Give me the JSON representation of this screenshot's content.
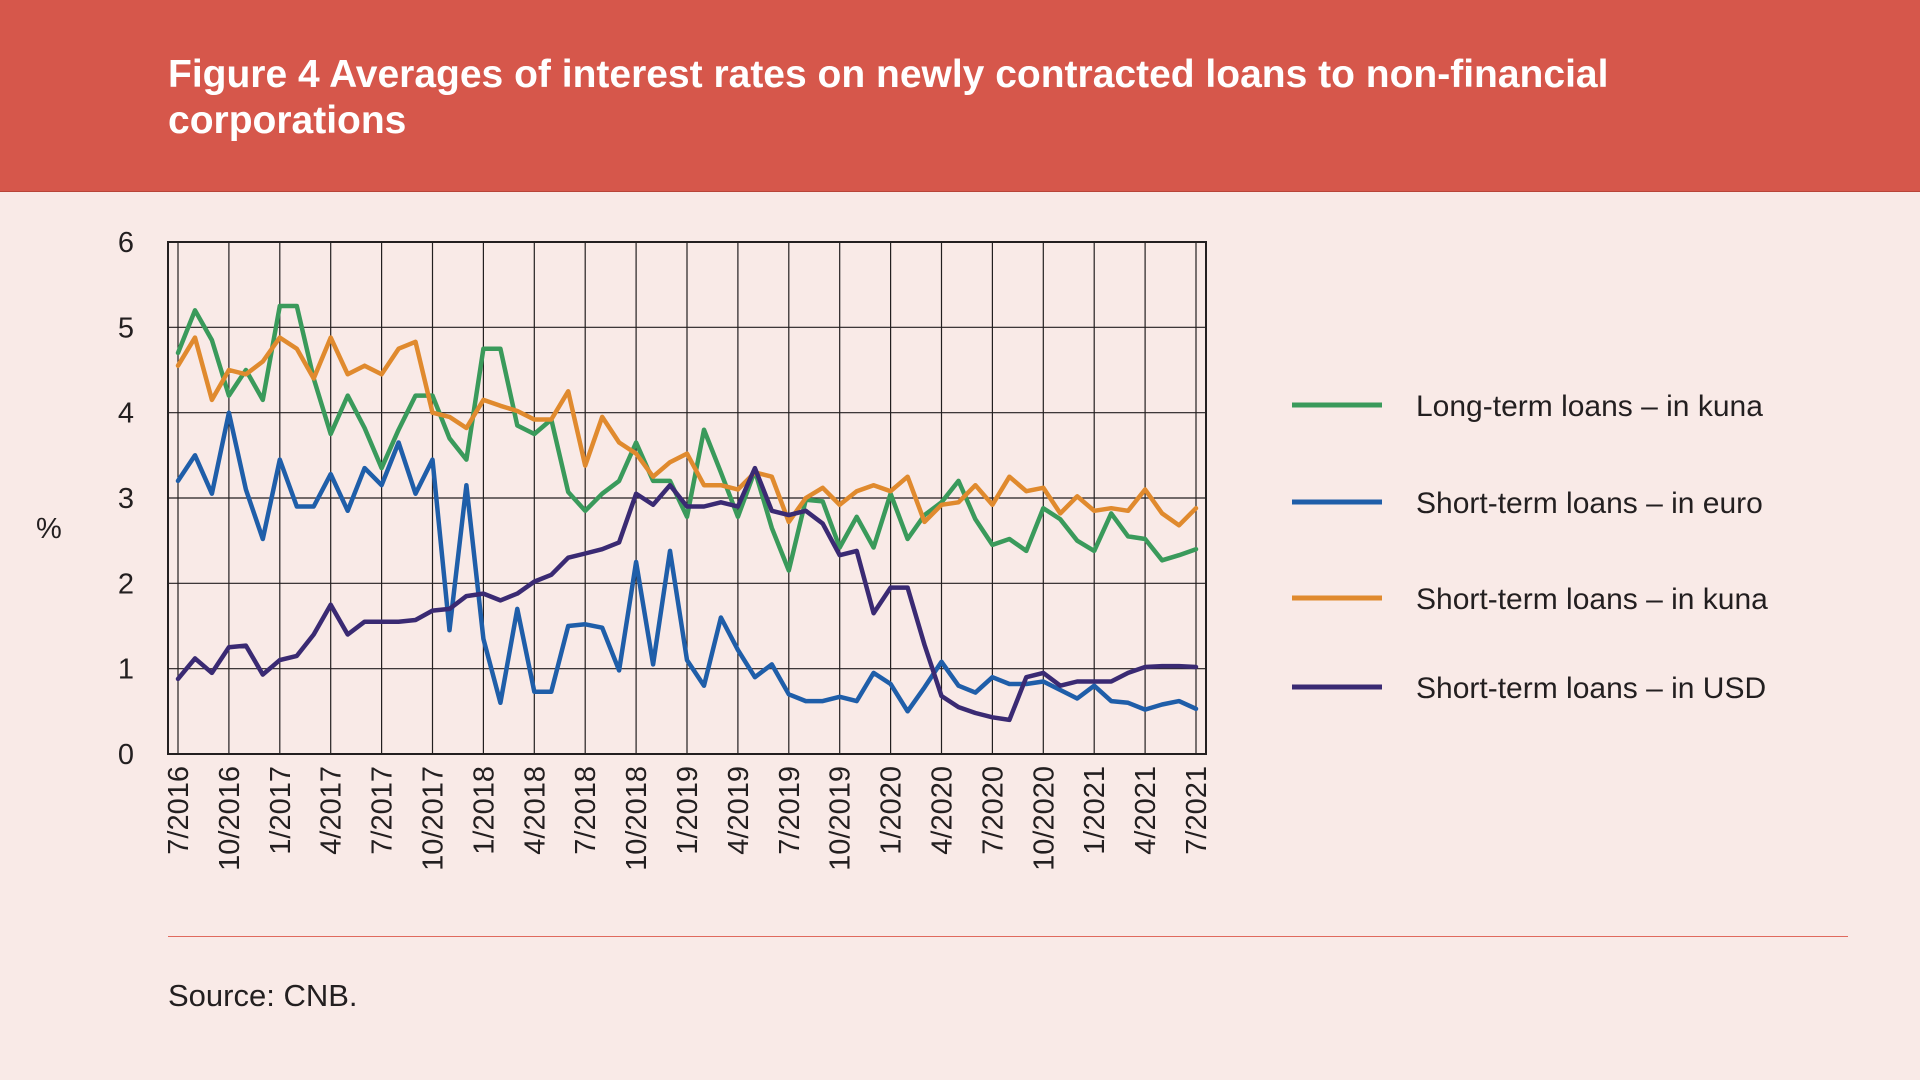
{
  "figure": {
    "title": "Figure 4 Averages of interest rates on newly contracted loans to non-financial corporations",
    "source": "Source: CNB."
  },
  "chart_data": {
    "type": "line",
    "title": "Figure 4 Averages of interest rates on newly contracted loans to non-financial corporations",
    "xlabel": "",
    "ylabel": "%",
    "ylim": [
      0,
      6
    ],
    "yticks": [
      "0",
      "1",
      "2",
      "3",
      "4",
      "5",
      "6"
    ],
    "grid": true,
    "legend_position": "right",
    "x_tick_labels": [
      "7/2016",
      "10/2016",
      "1/2017",
      "4/2017",
      "7/2017",
      "10/2017",
      "1/2018",
      "4/2018",
      "7/2018",
      "10/2018",
      "1/2019",
      "4/2019",
      "7/2019",
      "10/2019",
      "1/2020",
      "4/2020",
      "7/2020",
      "10/2020",
      "1/2021",
      "4/2021",
      "7/2021"
    ],
    "x": [
      "7/2016",
      "8/2016",
      "9/2016",
      "10/2016",
      "11/2016",
      "12/2016",
      "1/2017",
      "2/2017",
      "3/2017",
      "4/2017",
      "5/2017",
      "6/2017",
      "7/2017",
      "8/2017",
      "9/2017",
      "10/2017",
      "11/2017",
      "12/2017",
      "1/2018",
      "2/2018",
      "3/2018",
      "4/2018",
      "5/2018",
      "6/2018",
      "7/2018",
      "8/2018",
      "9/2018",
      "10/2018",
      "11/2018",
      "12/2018",
      "1/2019",
      "2/2019",
      "3/2019",
      "4/2019",
      "5/2019",
      "6/2019",
      "7/2019",
      "8/2019",
      "9/2019",
      "10/2019",
      "11/2019",
      "12/2019",
      "1/2020",
      "2/2020",
      "3/2020",
      "4/2020",
      "5/2020",
      "6/2020",
      "7/2020",
      "8/2020",
      "9/2020",
      "10/2020",
      "11/2020",
      "12/2020",
      "1/2021",
      "2/2021",
      "3/2021",
      "4/2021",
      "5/2021",
      "6/2021",
      "7/2021"
    ],
    "series": [
      {
        "name": "Long-term loans – in kuna",
        "color": "#3a9a5b",
        "values": [
          4.7,
          5.2,
          4.85,
          4.2,
          4.5,
          4.15,
          5.25,
          5.25,
          4.4,
          3.75,
          4.2,
          3.82,
          3.35,
          3.8,
          4.2,
          4.2,
          3.7,
          3.45,
          4.75,
          4.75,
          3.85,
          3.75,
          3.92,
          3.07,
          2.85,
          3.05,
          3.2,
          3.65,
          3.2,
          3.2,
          2.78,
          3.8,
          3.3,
          2.78,
          3.32,
          2.65,
          2.15,
          2.98,
          2.96,
          2.42,
          2.78,
          2.42,
          3.05,
          2.52,
          2.8,
          2.95,
          3.2,
          2.75,
          2.45,
          2.52,
          2.38,
          2.88,
          2.75,
          2.5,
          2.38,
          2.82,
          2.55,
          2.52,
          2.27,
          2.33,
          2.4
        ]
      },
      {
        "name": "Short-term loans – in euro",
        "color": "#1f5ea9",
        "values": [
          3.2,
          3.5,
          3.05,
          4.0,
          3.1,
          2.52,
          3.45,
          2.9,
          2.9,
          3.28,
          2.85,
          3.35,
          3.15,
          3.65,
          3.05,
          3.45,
          1.45,
          3.15,
          1.35,
          0.6,
          1.7,
          0.73,
          0.73,
          1.5,
          1.52,
          1.48,
          0.98,
          2.25,
          1.05,
          2.38,
          1.1,
          0.8,
          1.6,
          1.22,
          0.9,
          1.05,
          0.7,
          0.62,
          0.62,
          0.67,
          0.62,
          0.95,
          0.82,
          0.5,
          0.78,
          1.08,
          0.8,
          0.72,
          0.9,
          0.82,
          0.82,
          0.85,
          0.75,
          0.65,
          0.8,
          0.62,
          0.6,
          0.52,
          0.58,
          0.62,
          0.53
        ]
      },
      {
        "name": "Short-term loans – in kuna",
        "color": "#e08a2e",
        "values": [
          4.55,
          4.88,
          4.15,
          4.5,
          4.45,
          4.6,
          4.88,
          4.75,
          4.4,
          4.88,
          4.45,
          4.55,
          4.45,
          4.75,
          4.83,
          4.0,
          3.95,
          3.82,
          4.15,
          4.08,
          4.02,
          3.92,
          3.92,
          4.25,
          3.38,
          3.95,
          3.65,
          3.52,
          3.25,
          3.42,
          3.52,
          3.15,
          3.15,
          3.1,
          3.3,
          3.25,
          2.72,
          3.0,
          3.12,
          2.92,
          3.08,
          3.15,
          3.08,
          3.25,
          2.72,
          2.92,
          2.95,
          3.15,
          2.92,
          3.25,
          3.08,
          3.12,
          2.82,
          3.02,
          2.85,
          2.88,
          2.85,
          3.1,
          2.82,
          2.68,
          2.88
        ]
      },
      {
        "name": "Short-term loans – in USD",
        "color": "#3a2a73",
        "values": [
          0.88,
          1.12,
          0.95,
          1.25,
          1.27,
          0.93,
          1.1,
          1.15,
          1.4,
          1.75,
          1.4,
          1.55,
          1.55,
          1.55,
          1.57,
          1.68,
          1.7,
          1.85,
          1.88,
          1.8,
          1.88,
          2.02,
          2.1,
          2.3,
          2.35,
          2.4,
          2.48,
          3.05,
          2.92,
          3.15,
          2.9,
          2.9,
          2.95,
          2.9,
          3.35,
          2.85,
          2.8,
          2.85,
          2.7,
          2.33,
          2.38,
          1.65,
          1.95,
          1.95,
          1.28,
          0.68,
          0.55,
          0.48,
          0.43,
          0.4,
          0.9,
          0.95,
          0.8,
          0.85,
          0.85,
          0.85,
          0.95,
          1.02,
          1.03,
          1.03,
          1.02
        ]
      }
    ]
  }
}
